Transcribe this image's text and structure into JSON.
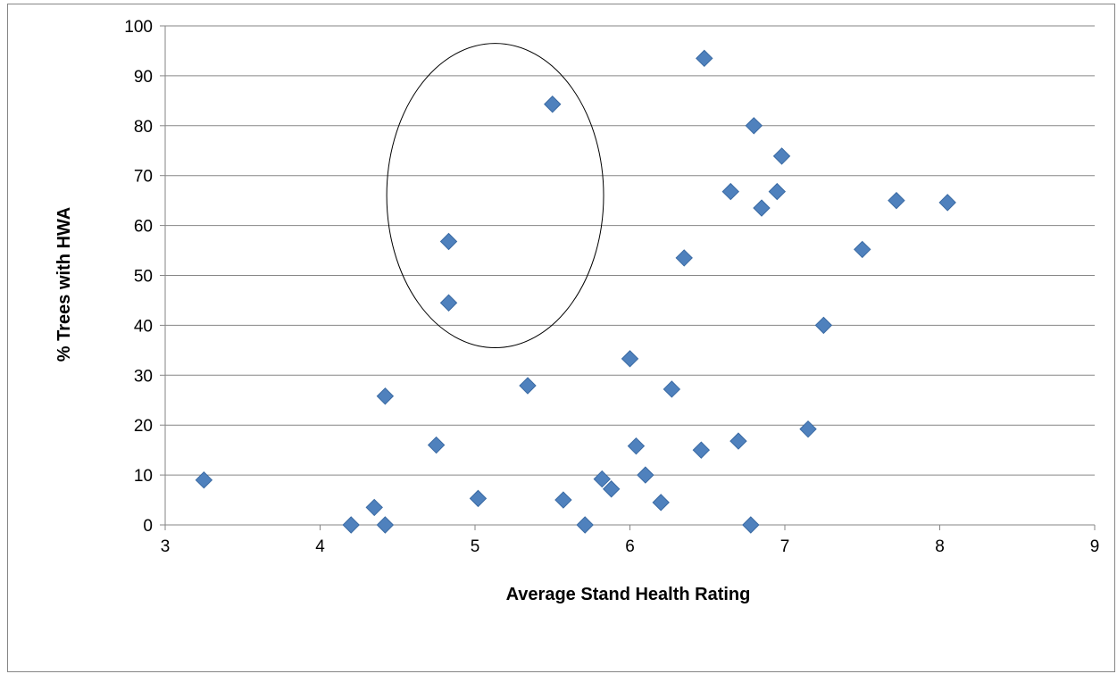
{
  "chart_data": {
    "type": "scatter",
    "title": "",
    "xlabel": "Average Stand Health Rating",
    "ylabel": "% Trees with HWA",
    "xlim": [
      3,
      9
    ],
    "ylim": [
      0,
      100
    ],
    "xticks": [
      3,
      4,
      5,
      6,
      7,
      8,
      9
    ],
    "yticks": [
      0,
      10,
      20,
      30,
      40,
      50,
      60,
      70,
      80,
      90,
      100
    ],
    "grid": "horizontal",
    "legend": "none",
    "marker": "diamond",
    "marker_color": "#4f81bd",
    "series": [
      {
        "points": [
          [
            3.25,
            9
          ],
          [
            4.2,
            0
          ],
          [
            4.35,
            3.5
          ],
          [
            4.42,
            0
          ],
          [
            4.42,
            25.8
          ],
          [
            4.75,
            16
          ],
          [
            4.83,
            56.8
          ],
          [
            4.83,
            44.5
          ],
          [
            5.02,
            5.3
          ],
          [
            5.34,
            27.9
          ],
          [
            5.5,
            84.3
          ],
          [
            5.57,
            5
          ],
          [
            5.71,
            0
          ],
          [
            5.82,
            9.2
          ],
          [
            5.88,
            7.2
          ],
          [
            6.0,
            33.3
          ],
          [
            6.04,
            15.8
          ],
          [
            6.1,
            10
          ],
          [
            6.2,
            4.5
          ],
          [
            6.27,
            27.2
          ],
          [
            6.35,
            53.5
          ],
          [
            6.46,
            15
          ],
          [
            6.48,
            93.5
          ],
          [
            6.65,
            66.8
          ],
          [
            6.7,
            16.8
          ],
          [
            6.78,
            0
          ],
          [
            6.8,
            80
          ],
          [
            6.85,
            63.5
          ],
          [
            6.95,
            66.8
          ],
          [
            6.98,
            73.9
          ],
          [
            7.15,
            19.2
          ],
          [
            7.25,
            40
          ],
          [
            7.5,
            55.2
          ],
          [
            7.72,
            65
          ],
          [
            8.05,
            64.6
          ]
        ]
      }
    ],
    "annotations": [
      {
        "shape": "ellipse",
        "cx": 5.13,
        "cy": 66,
        "rx": 0.7,
        "ry": 30.5
      }
    ]
  }
}
